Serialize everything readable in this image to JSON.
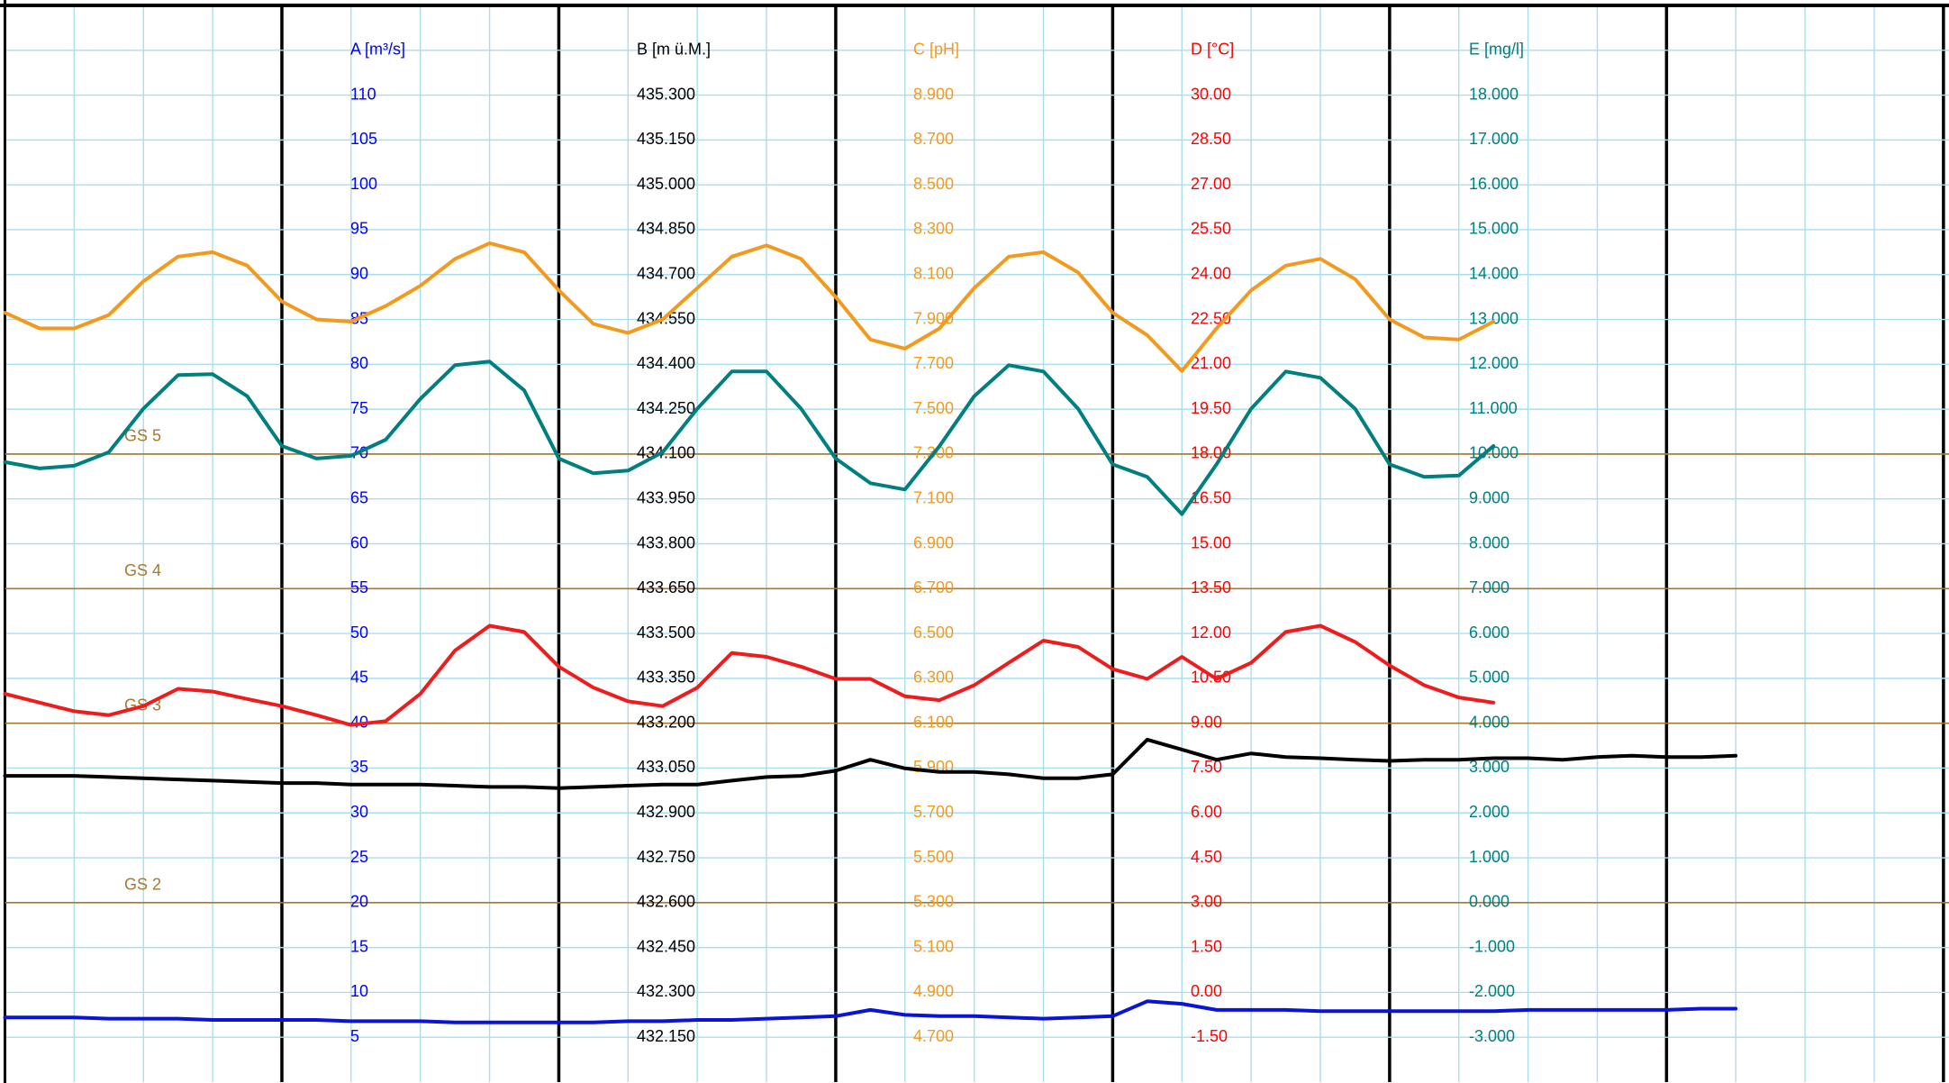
{
  "chart_data": {
    "type": "line",
    "x": [
      0,
      0.125,
      0.25,
      0.375,
      0.5,
      0.625,
      0.75,
      0.875,
      1,
      1.125,
      1.25,
      1.375,
      1.5,
      1.625,
      1.75,
      1.875,
      2,
      2.125,
      2.25,
      2.375,
      2.5,
      2.625,
      2.75,
      2.875,
      3,
      3.125,
      3.25,
      3.375,
      3.5,
      3.625,
      3.75,
      3.875,
      4,
      4.125,
      4.25,
      4.375,
      4.5,
      4.625,
      4.75,
      4.875,
      5,
      5.125,
      5.25,
      5.375,
      5.5,
      5.625,
      5.75,
      5.875,
      6,
      6.125,
      6.25
    ],
    "xlim": [
      0,
      7.02
    ],
    "grid": true,
    "axes": {
      "y": {
        "label": "A [m³/s]",
        "color": "#0000ff",
        "ylim": [
          0,
          120
        ],
        "yticks": [
          110,
          105,
          100,
          95,
          90,
          85,
          80,
          75,
          70,
          65,
          60,
          55,
          50,
          45,
          40,
          35,
          30,
          25,
          20,
          15,
          10,
          5
        ]
      },
      "y2": {
        "label": "B [m ü.M.]",
        "color": "#000000",
        "ylim": [
          432.0,
          435.6
        ],
        "yticks": [
          {
            "value": 435.3,
            "label": "435.300"
          },
          {
            "value": 435.15,
            "label": "435.150"
          },
          {
            "value": 435.0,
            "label": "435.000"
          },
          {
            "value": 434.85,
            "label": "434.850"
          },
          {
            "value": 434.7,
            "label": "434.700"
          },
          {
            "value": 434.55,
            "label": "434.550"
          },
          {
            "value": 434.4,
            "label": "434.400"
          },
          {
            "value": 434.25,
            "label": "434.250"
          },
          {
            "value": 434.1,
            "label": "434.100"
          },
          {
            "value": 433.95,
            "label": "433.950"
          },
          {
            "value": 433.8,
            "label": "433.800"
          },
          {
            "value": 433.65,
            "label": "433.650"
          },
          {
            "value": 433.5,
            "label": "433.500"
          },
          {
            "value": 433.35,
            "label": "433.350"
          },
          {
            "value": 433.2,
            "label": "433.200"
          },
          {
            "value": 433.05,
            "label": "433.050"
          },
          {
            "value": 432.9,
            "label": "432.900"
          },
          {
            "value": 432.75,
            "label": "432.750"
          },
          {
            "value": 432.6,
            "label": "432.600"
          },
          {
            "value": 432.45,
            "label": "432.450"
          },
          {
            "value": 432.3,
            "label": "432.300"
          },
          {
            "value": 432.15,
            "label": "432.150"
          }
        ]
      },
      "y3": {
        "label": "C [pH]",
        "color": "#f39a1e",
        "ylim": [
          4.5,
          9.3
        ],
        "yticks": [
          {
            "value": 8.9,
            "label": "8.900"
          },
          {
            "value": 8.7,
            "label": "8.700"
          },
          {
            "value": 8.5,
            "label": "8.500"
          },
          {
            "value": 8.3,
            "label": "8.300"
          },
          {
            "value": 8.1,
            "label": "8.100"
          },
          {
            "value": 7.9,
            "label": "7.900"
          },
          {
            "value": 7.7,
            "label": "7.700"
          },
          {
            "value": 7.5,
            "label": "7.500"
          },
          {
            "value": 7.3,
            "label": "7.300"
          },
          {
            "value": 7.1,
            "label": "7.100"
          },
          {
            "value": 6.9,
            "label": "6.900"
          },
          {
            "value": 6.7,
            "label": "6.700"
          },
          {
            "value": 6.5,
            "label": "6.500"
          },
          {
            "value": 6.3,
            "label": "6.300"
          },
          {
            "value": 6.1,
            "label": "6.100"
          },
          {
            "value": 5.9,
            "label": "5.900"
          },
          {
            "value": 5.7,
            "label": "5.700"
          },
          {
            "value": 5.5,
            "label": "5.500"
          },
          {
            "value": 5.3,
            "label": "5.300"
          },
          {
            "value": 5.1,
            "label": "5.100"
          },
          {
            "value": 4.9,
            "label": "4.900"
          },
          {
            "value": 4.7,
            "label": "4.700"
          }
        ]
      },
      "y4": {
        "label": "D [°C]",
        "color": "#ff0000",
        "ylim": [
          -3,
          33
        ],
        "yticks": [
          {
            "value": 30,
            "label": "30.00"
          },
          {
            "value": 28.5,
            "label": "28.50"
          },
          {
            "value": 27,
            "label": "27.00"
          },
          {
            "value": 25.5,
            "label": "25.50"
          },
          {
            "value": 24,
            "label": "24.00"
          },
          {
            "value": 22.5,
            "label": "22.50"
          },
          {
            "value": 21,
            "label": "21.00"
          },
          {
            "value": 19.5,
            "label": "19.50"
          },
          {
            "value": 18,
            "label": "18.00"
          },
          {
            "value": 16.5,
            "label": "16.50"
          },
          {
            "value": 15,
            "label": "15.00"
          },
          {
            "value": 13.5,
            "label": "13.50"
          },
          {
            "value": 12,
            "label": "12.00"
          },
          {
            "value": 10.5,
            "label": "10.50"
          },
          {
            "value": 9,
            "label": "9.00"
          },
          {
            "value": 7.5,
            "label": "7.50"
          },
          {
            "value": 6,
            "label": "6.00"
          },
          {
            "value": 4.5,
            "label": "4.50"
          },
          {
            "value": 3,
            "label": "3.00"
          },
          {
            "value": 1.5,
            "label": "1.50"
          },
          {
            "value": 0,
            "label": "0.00"
          },
          {
            "value": -1.5,
            "label": "-1.50"
          }
        ]
      },
      "y5": {
        "label": "E [mg/l]",
        "color": "#007f7f",
        "ylim": [
          -4,
          20
        ],
        "yticks": [
          {
            "value": 18,
            "label": "18.000"
          },
          {
            "value": 17,
            "label": "17.000"
          },
          {
            "value": 16,
            "label": "16.000"
          },
          {
            "value": 15,
            "label": "15.000"
          },
          {
            "value": 14,
            "label": "14.000"
          },
          {
            "value": 13,
            "label": "13.000"
          },
          {
            "value": 12,
            "label": "12.000"
          },
          {
            "value": 11,
            "label": "11.000"
          },
          {
            "value": 10,
            "label": "10.000"
          },
          {
            "value": 9,
            "label": "9.000"
          },
          {
            "value": 8,
            "label": "8.000"
          },
          {
            "value": 7,
            "label": "7.000"
          },
          {
            "value": 6,
            "label": "6.000"
          },
          {
            "value": 5,
            "label": "5.000"
          },
          {
            "value": 4,
            "label": "4.000"
          },
          {
            "value": 3,
            "label": "3.000"
          },
          {
            "value": 2,
            "label": "2.000"
          },
          {
            "value": 1,
            "label": "1.000"
          },
          {
            "value": 0,
            "label": "0.000"
          },
          {
            "value": -1,
            "label": "-1.000"
          },
          {
            "value": -2,
            "label": "-2.000"
          },
          {
            "value": -3,
            "label": "-3.000"
          }
        ]
      }
    },
    "reference_lines": [
      {
        "label": "GS 5",
        "value": 70
      },
      {
        "label": "GS 4",
        "value": 55
      },
      {
        "label": "GS 3",
        "value": 40
      },
      {
        "label": "GS 2",
        "value": 20
      }
    ],
    "reference_color": "#a8782a",
    "series": [
      {
        "axis": "y3",
        "color": "#f39a1e",
        "values": [
          7.93,
          7.86,
          7.86,
          7.92,
          8.07,
          8.18,
          8.2,
          8.14,
          7.98,
          7.9,
          7.89,
          7.96,
          8.05,
          8.17,
          8.24,
          8.2,
          8.03,
          7.88,
          7.84,
          7.9,
          8.04,
          8.18,
          8.23,
          8.17,
          8.0,
          7.81,
          7.77,
          7.86,
          8.04,
          8.18,
          8.2,
          8.11,
          7.93,
          7.83,
          7.67,
          7.86,
          8.03,
          8.14,
          8.17,
          8.08,
          7.9,
          7.82,
          7.81,
          7.89,
          null,
          null,
          null,
          null,
          null,
          null,
          null
        ]
      },
      {
        "axis": "y5",
        "color": "#007f7f",
        "values": [
          9.82,
          9.68,
          9.74,
          10.04,
          11.01,
          11.76,
          11.78,
          11.29,
          10.18,
          9.9,
          9.96,
          10.32,
          11.23,
          11.98,
          12.06,
          11.42,
          9.9,
          9.57,
          9.63,
          10.04,
          11.01,
          11.84,
          11.84,
          11.01,
          9.9,
          9.35,
          9.21,
          10.18,
          11.29,
          11.98,
          11.84,
          11.01,
          9.77,
          9.49,
          8.66,
          9.77,
          11.01,
          11.84,
          11.7,
          11.01,
          9.77,
          9.49,
          9.52,
          10.18,
          null,
          null,
          null,
          null,
          null,
          null,
          null
        ]
      },
      {
        "axis": "y4",
        "color": "#ee1c1c",
        "values": [
          9.98,
          9.69,
          9.4,
          9.27,
          9.57,
          10.15,
          10.06,
          9.81,
          9.57,
          9.27,
          8.94,
          9.07,
          9.98,
          11.43,
          12.26,
          12.05,
          10.89,
          10.19,
          9.73,
          9.57,
          10.19,
          11.35,
          11.22,
          10.89,
          10.48,
          10.48,
          9.9,
          9.77,
          10.27,
          11.02,
          11.76,
          11.55,
          10.81,
          10.48,
          11.22,
          10.48,
          11.02,
          12.05,
          12.26,
          11.72,
          10.93,
          10.27,
          9.86,
          9.69,
          null,
          null,
          null,
          null,
          null,
          null,
          null
        ]
      },
      {
        "axis": "y2",
        "color": "#000000",
        "values": [
          433.024,
          433.024,
          433.024,
          433.02,
          433.016,
          433.012,
          433.008,
          433.004,
          433.0,
          433.0,
          432.995,
          432.995,
          432.995,
          432.991,
          432.987,
          432.987,
          432.983,
          432.987,
          432.991,
          432.995,
          432.995,
          433.008,
          433.02,
          433.024,
          433.041,
          433.078,
          433.049,
          433.037,
          433.037,
          433.029,
          433.016,
          433.016,
          433.029,
          433.145,
          433.112,
          433.078,
          433.099,
          433.087,
          433.083,
          433.078,
          433.074,
          433.078,
          433.078,
          433.083,
          433.083,
          433.078,
          433.087,
          433.091,
          433.087,
          433.087,
          433.091
        ]
      },
      {
        "axis": "y",
        "color": "#0a14d6",
        "values": [
          7.21,
          7.21,
          7.21,
          7.07,
          7.07,
          7.07,
          6.93,
          6.93,
          6.93,
          6.93,
          6.79,
          6.79,
          6.79,
          6.66,
          6.66,
          6.66,
          6.66,
          6.66,
          6.79,
          6.79,
          6.93,
          6.93,
          7.07,
          7.21,
          7.35,
          8.04,
          7.49,
          7.35,
          7.35,
          7.21,
          7.07,
          7.21,
          7.35,
          9.01,
          8.73,
          8.04,
          8.04,
          8.04,
          7.9,
          7.9,
          7.9,
          7.9,
          7.9,
          7.9,
          8.04,
          8.04,
          8.04,
          8.04,
          8.04,
          8.18,
          8.18
        ]
      }
    ]
  }
}
